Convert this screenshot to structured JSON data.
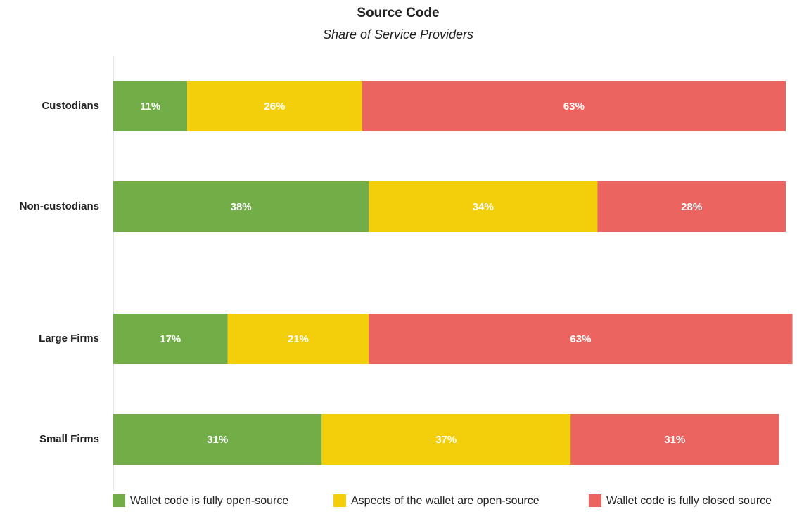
{
  "chart_data": {
    "type": "stacked_bar_horizontal",
    "title": "Source Code",
    "subtitle": "Share of Service Providers",
    "categories": [
      "Custodians",
      "Non-custodians",
      "Large Firms",
      "Small Firms"
    ],
    "xlim": [
      0,
      100
    ],
    "legend": "bottom",
    "series": [
      {
        "name": "Wallet code is fully open-source",
        "color": "#72ad48",
        "values": [
          11,
          38,
          17,
          31
        ],
        "value_labels": [
          "11%",
          "38%",
          "17%",
          "31%"
        ]
      },
      {
        "name": "Aspects of the wallet are open-source",
        "color": "#f2cf0a",
        "values": [
          26,
          34,
          21,
          37
        ],
        "value_labels": [
          "26%",
          "34%",
          "21%",
          "37%"
        ]
      },
      {
        "name": "Wallet code is fully closed source",
        "color": "#ec6460",
        "values": [
          63,
          28,
          63,
          31
        ],
        "value_labels": [
          "63%",
          "28%",
          "63%",
          "31%"
        ]
      }
    ]
  }
}
